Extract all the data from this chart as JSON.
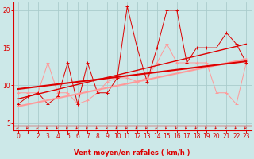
{
  "xlabel": "Vent moyen/en rafales ( km/h )",
  "xlim": [
    -0.5,
    23.5
  ],
  "ylim": [
    4,
    21
  ],
  "yticks": [
    5,
    10,
    15,
    20
  ],
  "xticks": [
    0,
    1,
    2,
    3,
    4,
    5,
    6,
    7,
    8,
    9,
    10,
    11,
    12,
    13,
    14,
    15,
    16,
    17,
    18,
    19,
    20,
    21,
    22,
    23
  ],
  "bg_color": "#cce8e8",
  "grid_color": "#aacccc",
  "red_dark": "#dd0000",
  "red_light": "#ff9999",
  "line1_x": [
    0,
    1,
    2,
    3,
    4,
    5,
    6,
    7,
    8,
    9,
    10,
    11,
    12,
    13,
    14,
    15,
    16,
    17,
    18,
    19,
    20,
    21,
    22,
    23
  ],
  "line1_y": [
    7.5,
    8.5,
    9.0,
    7.5,
    8.5,
    13.0,
    7.5,
    13.0,
    9.0,
    9.0,
    11.0,
    20.5,
    15.0,
    10.5,
    15.0,
    20.0,
    20.0,
    13.0,
    15.0,
    15.0,
    15.0,
    17.0,
    15.5,
    13.0
  ],
  "line2_x": [
    0,
    1,
    2,
    3,
    4,
    5,
    6,
    7,
    8,
    9,
    10,
    11,
    12,
    13,
    14,
    15,
    16,
    17,
    18,
    19,
    20,
    21,
    22,
    23
  ],
  "line2_y": [
    9.0,
    9.0,
    9.0,
    13.0,
    9.0,
    9.0,
    7.5,
    8.0,
    9.0,
    10.5,
    11.0,
    11.0,
    10.5,
    11.0,
    13.0,
    15.5,
    13.0,
    13.0,
    13.0,
    13.0,
    9.0,
    9.0,
    7.5,
    13.0
  ],
  "trend1_x": [
    0,
    23
  ],
  "trend1_y": [
    9.5,
    13.2
  ],
  "trend2_x": [
    0,
    23
  ],
  "trend2_y": [
    8.2,
    15.5
  ],
  "trend3_x": [
    0,
    23
  ],
  "trend3_y": [
    7.2,
    13.5
  ]
}
